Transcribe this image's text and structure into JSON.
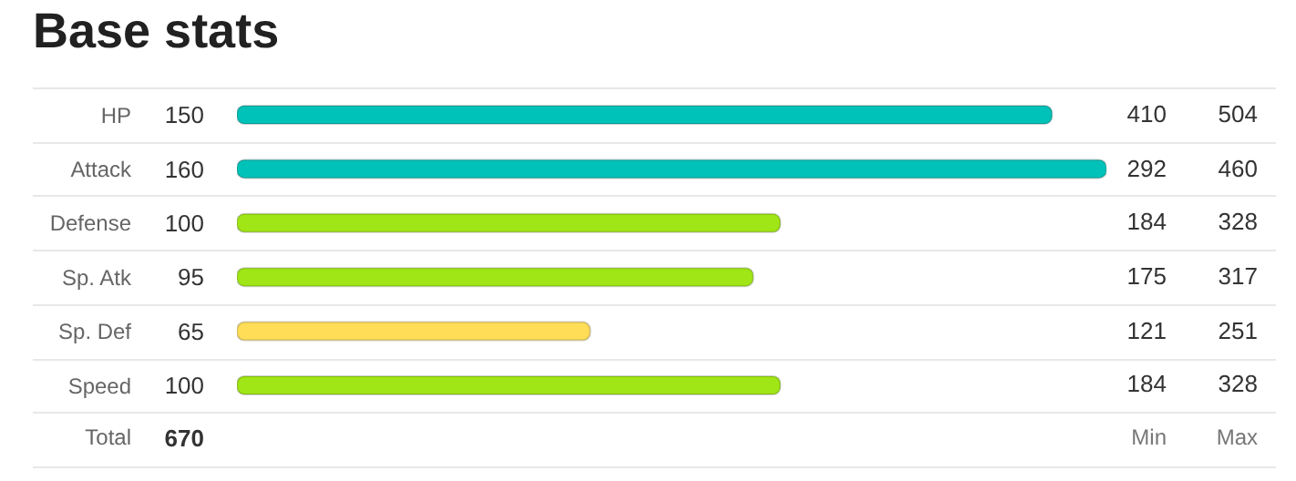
{
  "chart_data": {
    "type": "bar",
    "orientation": "horizontal",
    "title": "Base stats",
    "categories": [
      "HP",
      "Attack",
      "Defense",
      "Sp. Atk",
      "Sp. Def",
      "Speed"
    ],
    "values": [
      150,
      160,
      100,
      95,
      65,
      100
    ],
    "colors": [
      "#00c2b8",
      "#00c2b8",
      "#a0e515",
      "#a0e515",
      "#ffdd57",
      "#a0e515"
    ],
    "tick_labels": "y",
    "data_labels": true,
    "annotations": [
      "410",
      "504",
      "292",
      "460",
      "184",
      "328",
      "175",
      "317",
      "121",
      "251",
      "184",
      "328",
      "Total",
      "670",
      "Min",
      "Max"
    ]
  }
}
